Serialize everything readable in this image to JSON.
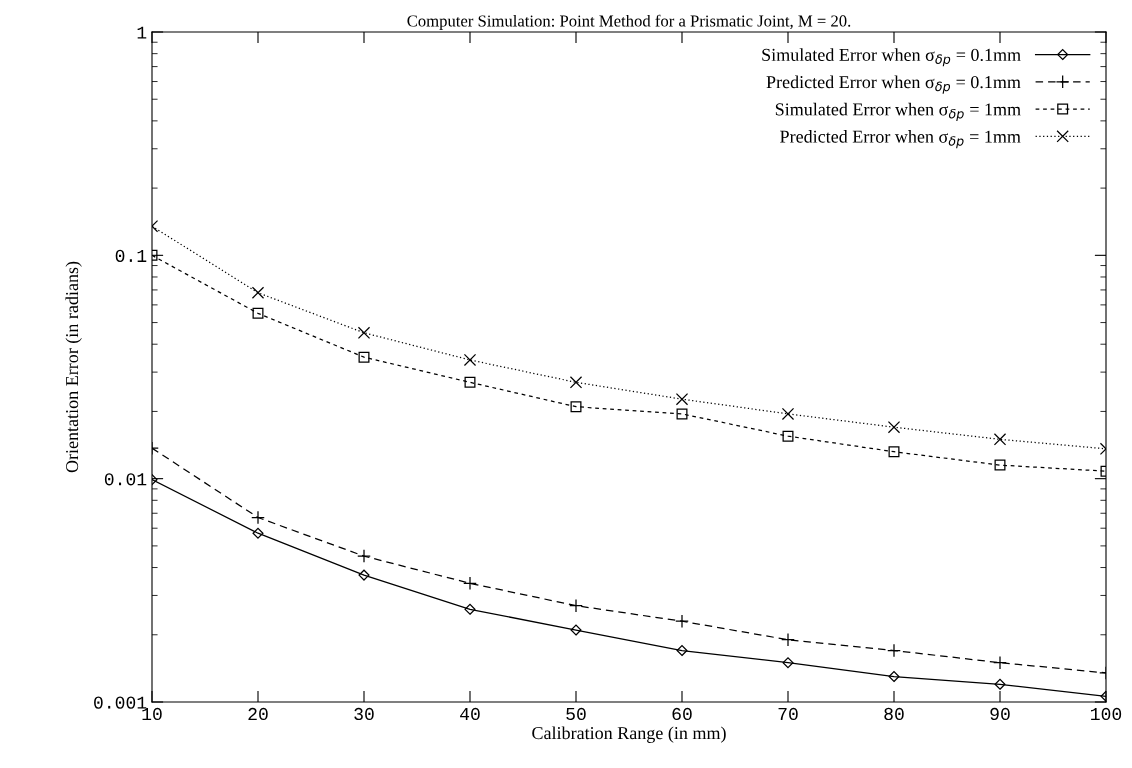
{
  "chart_data": {
    "type": "line",
    "title": "Computer Simulation: Point Method for a Prismatic Joint, M = 20.",
    "xlabel": "Calibration Range (in mm)",
    "ylabel": "Orientation Error (in radians)",
    "x": [
      10,
      20,
      30,
      40,
      50,
      60,
      70,
      80,
      90,
      100
    ],
    "log": "y",
    "grid": false,
    "legend": "top right",
    "xlim": [
      10,
      100
    ],
    "xticks": [
      10,
      20,
      30,
      40,
      50,
      60,
      70,
      80,
      90,
      100
    ],
    "ylim": [
      0.001,
      1
    ],
    "yticks": [
      1,
      0.1,
      0.01,
      0.001
    ],
    "series": [
      {
        "name": "Simulated Error when σ$_{δp}$ = 0.1mm",
        "color": "#000000",
        "marker": "diamond",
        "line_style": "solid",
        "values": [
          0.0099,
          0.0057,
          0.0037,
          0.0026,
          0.0021,
          0.0017,
          0.0015,
          0.0013,
          0.0012,
          0.00106
        ]
      },
      {
        "name": "Predicted Error when σ$_{δp}$ = 0.1mm",
        "color": "#000000",
        "marker": "plus",
        "line_style": "dashed",
        "values": [
          0.0137,
          0.0067,
          0.0045,
          0.0034,
          0.0027,
          0.0023,
          0.0019,
          0.0017,
          0.0015,
          0.00135
        ]
      },
      {
        "name": "Simulated Error when σ$_{δp}$ = 1mm",
        "color": "#000000",
        "marker": "square",
        "line_style": "densely_dashed",
        "values": [
          0.1,
          0.055,
          0.035,
          0.027,
          0.021,
          0.0195,
          0.0155,
          0.0132,
          0.0115,
          0.0108
        ]
      },
      {
        "name": "Predicted Error when σ$_{δp}$ = 1mm",
        "color": "#000000",
        "marker": "cross",
        "line_style": "dotted",
        "values": [
          0.135,
          0.068,
          0.045,
          0.034,
          0.027,
          0.0227,
          0.0195,
          0.017,
          0.015,
          0.0136
        ]
      }
    ]
  }
}
